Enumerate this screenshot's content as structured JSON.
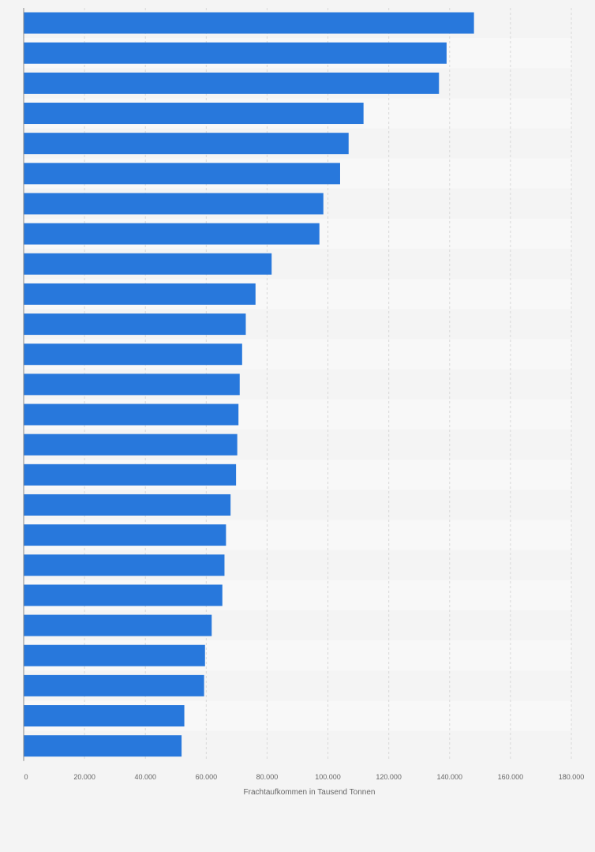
{
  "chart_data": {
    "type": "bar",
    "orientation": "horizontal",
    "title": "",
    "xlabel": "Frachtaufkommen in Tausend Tonnen",
    "ylabel": "",
    "xlim": [
      0,
      180000
    ],
    "x_ticks": [
      0,
      20000,
      40000,
      60000,
      80000,
      100000,
      120000,
      140000,
      160000,
      180000
    ],
    "x_tick_labels": [
      "0",
      "20.000",
      "40.000",
      "60.000",
      "80.000",
      "100.000",
      "120.000",
      "140.000",
      "160.000",
      "180.000"
    ],
    "grid": true,
    "legend": "none",
    "values": [
      148000,
      139000,
      136500,
      111700,
      106800,
      104000,
      98500,
      97200,
      81500,
      76200,
      73000,
      71800,
      71000,
      70600,
      70200,
      69800,
      68000,
      66500,
      66000,
      65300,
      61800,
      59600,
      59300,
      52800,
      51900
    ],
    "bar_color": "#2878dc",
    "band_colors": [
      "#f4f4f4",
      "#f8f8f8"
    ],
    "background_color": "#f4f4f4",
    "gridline_color": "#d8d8d8"
  }
}
